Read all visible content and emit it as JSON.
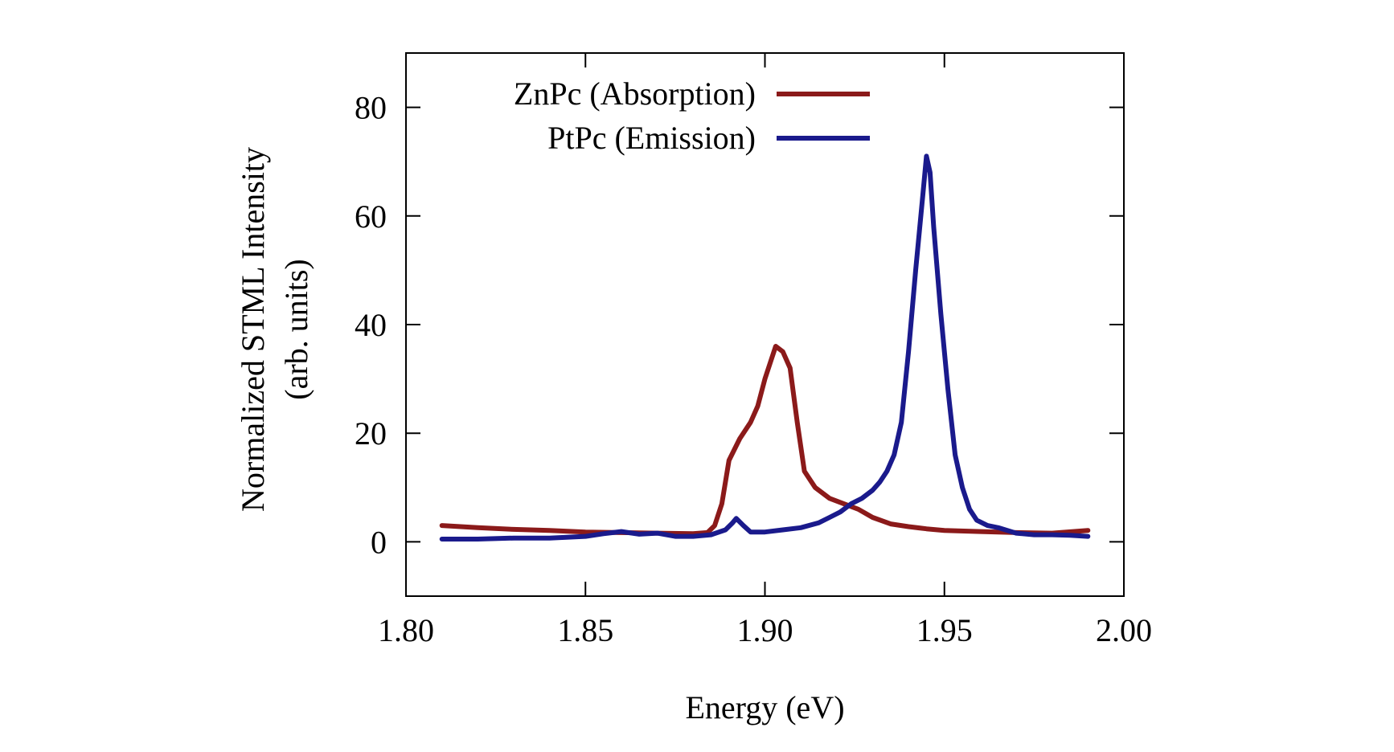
{
  "chart_data": {
    "type": "line",
    "title": "",
    "xlabel": "Energy (eV)",
    "ylabel": "Normalized STML Intensity",
    "ylabel2": "(arb. units)",
    "xlim": [
      1.8,
      2.0
    ],
    "ylim": [
      -10,
      90
    ],
    "xticks": [
      1.8,
      1.85,
      1.9,
      1.95,
      2.0
    ],
    "xtick_labels": [
      "1.80",
      "1.85",
      "1.90",
      "1.95",
      "2.00"
    ],
    "yticks": [
      0,
      20,
      40,
      60,
      80
    ],
    "ytick_labels": [
      "0",
      "20",
      "40",
      "60",
      "80"
    ],
    "grid": false,
    "legend": "top-left",
    "series": [
      {
        "name": "ZnPc (Absorption)",
        "color": "#8b1a1a",
        "points": [
          [
            1.81,
            3.0
          ],
          [
            1.82,
            2.6
          ],
          [
            1.83,
            2.3
          ],
          [
            1.84,
            2.1
          ],
          [
            1.85,
            1.8
          ],
          [
            1.86,
            1.7
          ],
          [
            1.87,
            1.6
          ],
          [
            1.88,
            1.5
          ],
          [
            1.884,
            1.7
          ],
          [
            1.886,
            3.0
          ],
          [
            1.888,
            7.0
          ],
          [
            1.89,
            15.0
          ],
          [
            1.893,
            19.0
          ],
          [
            1.896,
            22.0
          ],
          [
            1.898,
            25.0
          ],
          [
            1.9,
            30.0
          ],
          [
            1.902,
            34.0
          ],
          [
            1.903,
            36.0
          ],
          [
            1.905,
            35.0
          ],
          [
            1.907,
            32.0
          ],
          [
            1.909,
            22.0
          ],
          [
            1.911,
            13.0
          ],
          [
            1.914,
            10.0
          ],
          [
            1.918,
            8.0
          ],
          [
            1.922,
            7.0
          ],
          [
            1.926,
            6.0
          ],
          [
            1.93,
            4.5
          ],
          [
            1.935,
            3.3
          ],
          [
            1.94,
            2.8
          ],
          [
            1.945,
            2.4
          ],
          [
            1.95,
            2.1
          ],
          [
            1.96,
            1.9
          ],
          [
            1.97,
            1.7
          ],
          [
            1.98,
            1.6
          ],
          [
            1.99,
            2.1
          ]
        ]
      },
      {
        "name": "PtPc (Emission)",
        "color": "#1a1a8c",
        "points": [
          [
            1.81,
            0.5
          ],
          [
            1.82,
            0.5
          ],
          [
            1.83,
            0.7
          ],
          [
            1.84,
            0.7
          ],
          [
            1.85,
            1.0
          ],
          [
            1.855,
            1.5
          ],
          [
            1.86,
            1.9
          ],
          [
            1.865,
            1.4
          ],
          [
            1.87,
            1.6
          ],
          [
            1.875,
            1.0
          ],
          [
            1.88,
            1.0
          ],
          [
            1.885,
            1.3
          ],
          [
            1.889,
            2.2
          ],
          [
            1.891,
            3.5
          ],
          [
            1.892,
            4.3
          ],
          [
            1.894,
            3.0
          ],
          [
            1.896,
            1.8
          ],
          [
            1.9,
            1.8
          ],
          [
            1.905,
            2.2
          ],
          [
            1.91,
            2.6
          ],
          [
            1.915,
            3.5
          ],
          [
            1.918,
            4.5
          ],
          [
            1.921,
            5.5
          ],
          [
            1.924,
            7.0
          ],
          [
            1.927,
            8.0
          ],
          [
            1.93,
            9.5
          ],
          [
            1.932,
            11.0
          ],
          [
            1.934,
            13.0
          ],
          [
            1.936,
            16.0
          ],
          [
            1.938,
            22.0
          ],
          [
            1.94,
            35.0
          ],
          [
            1.942,
            50.0
          ],
          [
            1.944,
            64.0
          ],
          [
            1.945,
            71.0
          ],
          [
            1.946,
            68.0
          ],
          [
            1.947,
            58.0
          ],
          [
            1.949,
            42.0
          ],
          [
            1.951,
            28.0
          ],
          [
            1.953,
            16.0
          ],
          [
            1.955,
            10.0
          ],
          [
            1.957,
            6.0
          ],
          [
            1.959,
            4.0
          ],
          [
            1.962,
            3.0
          ],
          [
            1.965,
            2.6
          ],
          [
            1.97,
            1.6
          ],
          [
            1.975,
            1.3
          ],
          [
            1.98,
            1.3
          ],
          [
            1.985,
            1.2
          ],
          [
            1.99,
            1.0
          ]
        ]
      }
    ]
  }
}
